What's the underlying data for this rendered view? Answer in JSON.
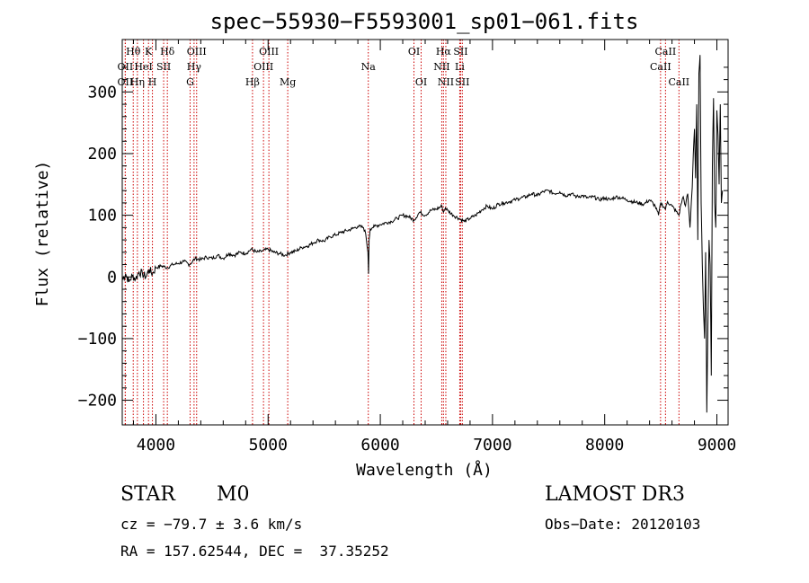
{
  "chart_data": {
    "type": "line",
    "title": "spec−55930−F5593001_sp01−061.fits",
    "xlabel": "Wavelength (Å)",
    "ylabel": "Flux (relative)",
    "xlim": [
      3700,
      9100
    ],
    "ylim": [
      -240,
      385
    ],
    "xticks": [
      4000,
      5000,
      6000,
      7000,
      8000,
      9000
    ],
    "yticks": [
      -200,
      -100,
      0,
      100,
      200,
      300
    ],
    "ytick_labels": [
      "−200",
      "−100",
      "0",
      "100",
      "200",
      "300"
    ],
    "series": [
      {
        "name": "flux",
        "x": [
          3700,
          3730,
          3760,
          3790,
          3820,
          3850,
          3880,
          3910,
          3940,
          3970,
          4000,
          4050,
          4100,
          4150,
          4200,
          4250,
          4300,
          4350,
          4400,
          4450,
          4500,
          4550,
          4600,
          4650,
          4700,
          4750,
          4800,
          4850,
          4900,
          4950,
          5000,
          5050,
          5100,
          5150,
          5200,
          5250,
          5300,
          5350,
          5400,
          5450,
          5500,
          5550,
          5600,
          5650,
          5700,
          5750,
          5800,
          5850,
          5870,
          5890,
          5895,
          5900,
          5910,
          5930,
          5950,
          6000,
          6050,
          6100,
          6150,
          6200,
          6250,
          6300,
          6350,
          6400,
          6450,
          6500,
          6550,
          6563,
          6580,
          6600,
          6650,
          6700,
          6750,
          6800,
          6850,
          6900,
          6950,
          7000,
          7050,
          7100,
          7150,
          7200,
          7250,
          7300,
          7350,
          7400,
          7450,
          7500,
          7550,
          7600,
          7650,
          7700,
          7750,
          7800,
          7850,
          7900,
          7950,
          8000,
          8050,
          8100,
          8150,
          8200,
          8250,
          8300,
          8350,
          8400,
          8450,
          8480,
          8500,
          8542,
          8560,
          8600,
          8662,
          8680,
          8700,
          8720,
          8740,
          8760,
          8780,
          8790,
          8800,
          8810,
          8820,
          8830,
          8840,
          8850,
          8860,
          8870,
          8880,
          8890,
          8900,
          8910,
          8920,
          8930,
          8940,
          8950,
          8960,
          8970,
          8980,
          8990,
          9000,
          9010,
          9020,
          9030,
          9040,
          9050
        ],
        "y": [
          -5,
          5,
          -8,
          2,
          -3,
          8,
          5,
          0,
          12,
          5,
          15,
          18,
          15,
          20,
          22,
          25,
          20,
          30,
          28,
          32,
          30,
          35,
          30,
          38,
          35,
          40,
          38,
          45,
          40,
          42,
          45,
          40,
          38,
          35,
          40,
          42,
          48,
          50,
          55,
          60,
          58,
          65,
          68,
          72,
          75,
          78,
          82,
          80,
          70,
          40,
          5,
          60,
          78,
          80,
          82,
          85,
          88,
          90,
          95,
          100,
          98,
          92,
          105,
          100,
          108,
          110,
          115,
          105,
          112,
          108,
          100,
          95,
          90,
          95,
          100,
          108,
          115,
          110,
          118,
          120,
          122,
          125,
          128,
          130,
          135,
          132,
          138,
          140,
          135,
          138,
          132,
          135,
          130,
          132,
          128,
          130,
          125,
          128,
          125,
          130,
          128,
          125,
          122,
          120,
          118,
          125,
          115,
          100,
          120,
          110,
          122,
          115,
          100,
          118,
          130,
          115,
          135,
          80,
          145,
          200,
          240,
          160,
          280,
          60,
          330,
          360,
          120,
          20,
          -50,
          -100,
          40,
          -220,
          -80,
          60,
          20,
          -160,
          180,
          290,
          120,
          80,
          270,
          230,
          150,
          280,
          120,
          140
        ]
      }
    ],
    "line_labels": [
      {
        "label": "Hθ",
        "x": 3798,
        "row": 0
      },
      {
        "label": "K",
        "x": 3934,
        "row": 0
      },
      {
        "label": "Hδ",
        "x": 4102,
        "row": 0
      },
      {
        "label": "OII",
        "x": 3727,
        "row": 1
      },
      {
        "label": "HeI",
        "x": 3889,
        "row": 1
      },
      {
        "label": "SII",
        "x": 4069,
        "row": 1
      },
      {
        "label": "OII",
        "x": 3727,
        "row": 2
      },
      {
        "label": "Hη",
        "x": 3835,
        "row": 2
      },
      {
        "label": "H",
        "x": 3969,
        "row": 2
      },
      {
        "label": "OIII",
        "x": 4363,
        "row": 0
      },
      {
        "label": "Hγ",
        "x": 4340,
        "row": 1
      },
      {
        "label": "G",
        "x": 4305,
        "row": 2
      },
      {
        "label": "OIII",
        "x": 5007,
        "row": 0
      },
      {
        "label": "OIII",
        "x": 4959,
        "row": 1
      },
      {
        "label": "Hβ",
        "x": 4861,
        "row": 2
      },
      {
        "label": "Mg",
        "x": 5175,
        "row": 2
      },
      {
        "label": "Na",
        "x": 5893,
        "row": 1
      },
      {
        "label": "OI",
        "x": 6300,
        "row": 0
      },
      {
        "label": "OI",
        "x": 6364,
        "row": 2
      },
      {
        "label": "Hα",
        "x": 6563,
        "row": 0
      },
      {
        "label": "SII",
        "x": 6716,
        "row": 0
      },
      {
        "label": "NII",
        "x": 6548,
        "row": 1
      },
      {
        "label": "Li",
        "x": 6708,
        "row": 1
      },
      {
        "label": "NII",
        "x": 6584,
        "row": 2
      },
      {
        "label": "SII",
        "x": 6731,
        "row": 2
      },
      {
        "label": "CaII",
        "x": 8542,
        "row": 0
      },
      {
        "label": "CaII",
        "x": 8498,
        "row": 1
      },
      {
        "label": "CaII",
        "x": 8662,
        "row": 2
      }
    ],
    "line_marker_color": "#cc0000"
  },
  "info": {
    "class": "STAR",
    "subclass": "M0",
    "survey": "LAMOST DR3",
    "cz": "cz = −79.7 ± 3.6 km/s",
    "obs_date": "Obs−Date: 20120103",
    "radec": "RA = 157.62544, DEC =  37.35252"
  }
}
